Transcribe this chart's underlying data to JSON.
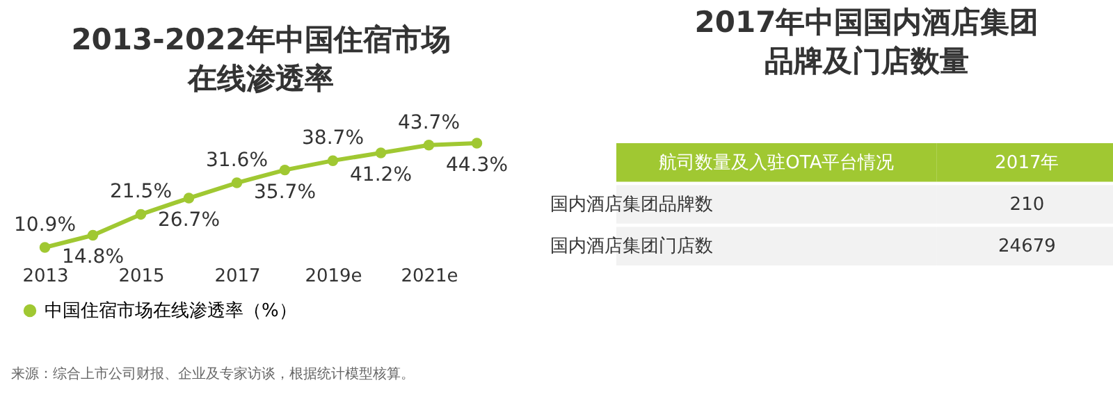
{
  "chart_data": [
    {
      "type": "line",
      "title": "2013-2022年中国住宿市场在线渗透率",
      "categories": [
        "2013",
        null,
        "2015",
        null,
        "2017",
        null,
        "2019e",
        null,
        "2021e",
        null
      ],
      "series": [
        {
          "name": "中国住宿市场在线渗透率（%）",
          "color": "#a0c832",
          "values": [
            10.9,
            14.8,
            21.5,
            26.7,
            31.6,
            35.7,
            38.7,
            41.2,
            43.7,
            44.3
          ],
          "value_labels": [
            "10.9%",
            "14.8%",
            "21.5%",
            "26.7%",
            "31.6%",
            "35.7%",
            "38.7%",
            "41.2%",
            "43.7%",
            "44.3%"
          ]
        }
      ],
      "marker": "circle",
      "legend": "bottom",
      "grid": false,
      "annotations": [
        "来源：综合上市公司财报、企业及专家访谈，根据统计模型核算。"
      ]
    },
    {
      "type": "other",
      "title": "2017年中国国内酒店集团品牌及门店数量",
      "data_labels": true,
      "xlabel": "航司数量及入驻OTA平台情况",
      "ylabel": "2017年",
      "categories": [
        "国内酒店集团品牌数",
        "国内酒店集团门店数"
      ],
      "values": [
        210,
        24679
      ]
    }
  ]
}
